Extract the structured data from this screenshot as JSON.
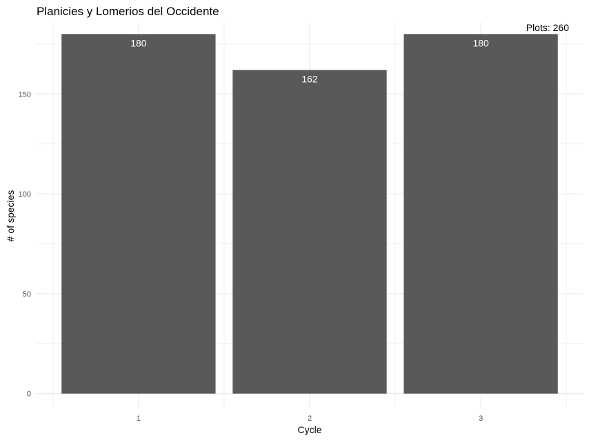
{
  "chart_data": {
    "type": "bar",
    "title": "Planicies y Lomerios del Occidente",
    "annotation": "Plots: 260",
    "xlabel": "Cycle",
    "ylabel": "# of species",
    "categories": [
      "1",
      "2",
      "3"
    ],
    "values": [
      180,
      162,
      180
    ],
    "data_labels": [
      "180",
      "162",
      "180"
    ],
    "y_ticks": [
      0,
      50,
      100,
      150
    ],
    "y_tick_labels": [
      "0",
      "50",
      "100",
      "150"
    ],
    "ylim": [
      -7,
      186
    ],
    "bar_color": "#595959",
    "grid": true,
    "legend": "none"
  }
}
